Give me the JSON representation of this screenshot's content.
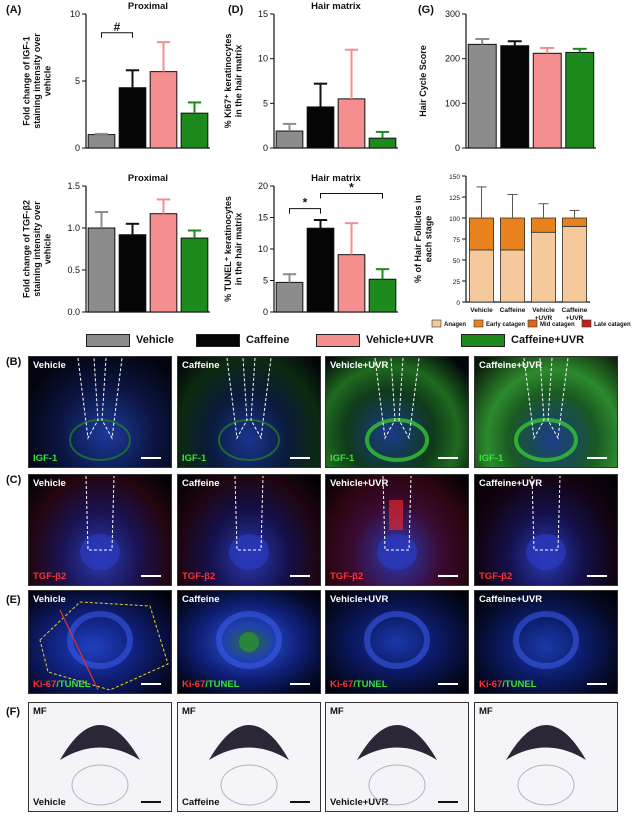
{
  "panel_labels": {
    "A": "(A)",
    "B": "(B)",
    "C": "(C)",
    "D": "(D)",
    "E": "(E)",
    "F": "(F)",
    "G": "(G)"
  },
  "colors": {
    "vehicle": "#8c8c8c",
    "caffeine": "#050505",
    "vehicle_uvr": "#f58e8e",
    "caffeine_uvr": "#1d8a1d",
    "anagen": "#f5c99b",
    "early_catagen": "#e8821e",
    "mid_catagen": "#d9661a",
    "late_catagen": "#c0221a"
  },
  "legend": [
    {
      "label": "Vehicle",
      "color": "#8c8c8c"
    },
    {
      "label": "Caffeine",
      "color": "#050505"
    },
    {
      "label": "Vehicle+UVR",
      "color": "#f58e8e"
    },
    {
      "label": "Caffeine+UVR",
      "color": "#1d8a1d"
    }
  ],
  "chart_data": [
    {
      "id": "A1",
      "type": "bar",
      "title": "Proximal",
      "ylabel": [
        "Fold change of IGF-1",
        "staining intensity over",
        "vehicle"
      ],
      "ylim": [
        0,
        10
      ],
      "yticks": [
        "0",
        "5",
        "10"
      ],
      "values": [
        1.0,
        4.5,
        5.7,
        2.6
      ],
      "errors": [
        0.05,
        1.3,
        2.2,
        0.8
      ],
      "annotations": [
        {
          "text": "#",
          "from": 0,
          "to": 1
        }
      ]
    },
    {
      "id": "A2",
      "type": "bar",
      "title": "Proximal",
      "ylabel": [
        "Fold change of TGF-β2",
        "staining intensity over",
        "vehicle"
      ],
      "ylim": [
        0,
        1.5
      ],
      "yticks": [
        "0.0",
        "0.5",
        "1.0",
        "1.5"
      ],
      "values": [
        1.0,
        0.92,
        1.17,
        0.88
      ],
      "errors": [
        0.19,
        0.13,
        0.17,
        0.09
      ],
      "annotations": []
    },
    {
      "id": "D1",
      "type": "bar",
      "title": "Hair matrix",
      "ylabel": [
        "% Ki67⁺ keratinocytes",
        "in the hair matrix"
      ],
      "ylim": [
        0,
        15
      ],
      "yticks": [
        "0",
        "5",
        "10",
        "15"
      ],
      "values": [
        1.9,
        4.6,
        5.5,
        1.1
      ],
      "errors": [
        0.8,
        2.6,
        5.5,
        0.7
      ],
      "annotations": []
    },
    {
      "id": "D2",
      "type": "bar",
      "title": "Hair matrix",
      "ylabel": [
        "% TUNEL⁺ keratinocytes",
        "in the hair matrix"
      ],
      "ylim": [
        0,
        20
      ],
      "yticks": [
        "0",
        "5",
        "10",
        "15",
        "20"
      ],
      "values": [
        4.7,
        13.3,
        9.1,
        5.2
      ],
      "errors": [
        1.3,
        1.3,
        5.0,
        1.6
      ],
      "annotations": [
        {
          "text": "*",
          "from": 0,
          "to": 1
        },
        {
          "text": "*",
          "from": 1,
          "to": 3
        }
      ]
    },
    {
      "id": "G1",
      "type": "bar",
      "title": "",
      "ylabel": [
        "Hair Cycle Score"
      ],
      "ylim": [
        0,
        300
      ],
      "yticks": [
        "0",
        "100",
        "200",
        "300"
      ],
      "values": [
        232,
        229,
        212,
        214
      ],
      "errors": [
        12,
        10,
        12,
        8
      ],
      "annotations": []
    },
    {
      "id": "G2",
      "type": "bar",
      "stacked": true,
      "title": "",
      "ylabel": [
        "% of Hair Follicles in",
        "each stage"
      ],
      "ylim": [
        0,
        150
      ],
      "yticks": [
        "0",
        "25",
        "50",
        "75",
        "100",
        "125",
        "150"
      ],
      "categories": [
        "Vehicle",
        "Caffeine",
        "Vehicle +UVR",
        "Caffeine +UVR"
      ],
      "series": [
        {
          "name": "Anagen",
          "values": [
            62,
            62,
            83,
            90
          ]
        },
        {
          "name": "Early catagen",
          "values": [
            38,
            38,
            17,
            10
          ]
        },
        {
          "name": "Mid catagen",
          "values": [
            0,
            0,
            0,
            0
          ]
        },
        {
          "name": "Late catagen",
          "values": [
            0,
            0,
            0,
            0
          ]
        }
      ],
      "errors": [
        37,
        28,
        17,
        9
      ]
    }
  ],
  "image_rows": {
    "B": {
      "stain": "IGF-1",
      "stain_color": "#3be13b",
      "titles": [
        "Vehicle",
        "Caffeine",
        "Vehicle+UVR",
        "Caffeine+UVR"
      ]
    },
    "C": {
      "stain": "TGF-β2",
      "stain_color": "#ff3030",
      "titles": [
        "Vehicle",
        "Caffeine",
        "Vehicle+UVR",
        "Caffeine+UVR"
      ]
    },
    "E": {
      "stain_a": "Ki-67",
      "stain_b": "/TUNEL",
      "titles": [
        "Vehicle",
        "Caffeine",
        "Vehicle+UVR",
        "Caffeine+UVR"
      ]
    },
    "F": {
      "top": "MF",
      "bottom": [
        "Vehicle",
        "Caffeine",
        "Vehicle+UVR",
        ""
      ]
    }
  }
}
